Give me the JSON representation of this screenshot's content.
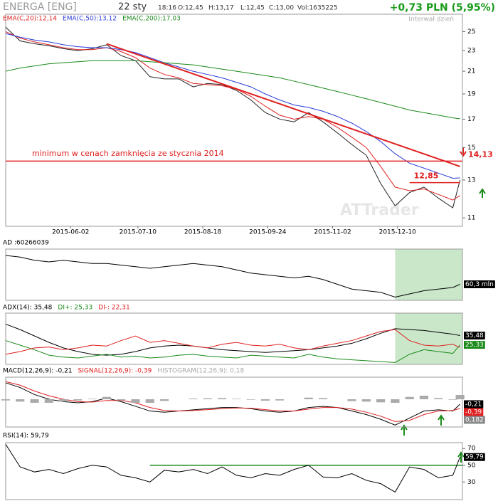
{
  "header": {
    "title": "ENERGA [ENG]",
    "date": "22 sty",
    "time": "18:16",
    "open": "O:12,45",
    "high": "H:13,17",
    "low": "L:12,45",
    "close": "C:13,00",
    "volume": "Vol:1635225",
    "change": "+0,73 PLN (5,95%)",
    "interval": "Interwał dzień",
    "watermark": "ATTrader"
  },
  "chart_data": [
    {
      "type": "line",
      "log_scale": true,
      "ylim": [
        10.6,
        27
      ],
      "yticks": [
        11,
        13,
        15,
        17,
        19,
        21,
        23,
        25
      ],
      "xlim": [
        0,
        190
      ],
      "xticks": [
        {
          "value": 27,
          "label": "2015-06-02"
        },
        {
          "value": 55,
          "label": "2015-07-10"
        },
        {
          "value": 82,
          "label": "2015-08-18"
        },
        {
          "value": 109,
          "label": "2015-09-24"
        },
        {
          "value": 136,
          "label": "2015-11-02"
        },
        {
          "value": 163,
          "label": "2015-12-10"
        }
      ],
      "x": [
        0,
        6,
        12,
        18,
        24,
        30,
        36,
        42,
        48,
        54,
        60,
        66,
        72,
        78,
        84,
        90,
        96,
        102,
        108,
        114,
        120,
        126,
        132,
        138,
        144,
        150,
        156,
        162,
        168,
        174,
        180,
        186,
        189
      ],
      "series": [
        {
          "color": "#222222",
          "values": [
            25.5,
            24.0,
            23.7,
            23.5,
            23.2,
            23.0,
            23.2,
            23.6,
            22.5,
            22.0,
            20.5,
            20.3,
            20.3,
            19.6,
            19.9,
            19.8,
            19.3,
            18.5,
            17.5,
            17.0,
            16.8,
            17.5,
            16.8,
            16.0,
            15.2,
            14.5,
            12.8,
            11.6,
            12.3,
            12.6,
            12.0,
            11.5,
            13.0
          ]
        },
        {
          "name": "EMA(C,20):12,14",
          "color": "#e02020",
          "values": [
            25.0,
            24.3,
            23.9,
            23.6,
            23.3,
            23.1,
            23.1,
            23.3,
            22.9,
            22.3,
            21.3,
            20.7,
            20.4,
            19.9,
            19.8,
            19.7,
            19.4,
            18.8,
            18.0,
            17.3,
            17.0,
            17.2,
            17.0,
            16.4,
            15.7,
            15.0,
            13.8,
            12.6,
            12.4,
            12.5,
            12.2,
            11.9,
            12.14
          ]
        },
        {
          "name": "EMA(C,50):13,12",
          "color": "#2a3cd8",
          "values": [
            24.8,
            24.4,
            24.1,
            23.9,
            23.6,
            23.4,
            23.3,
            23.3,
            23.1,
            22.8,
            22.3,
            21.8,
            21.4,
            21.0,
            20.7,
            20.4,
            20.0,
            19.6,
            19.0,
            18.5,
            18.1,
            17.9,
            17.6,
            17.2,
            16.7,
            16.1,
            15.4,
            14.6,
            14.0,
            13.7,
            13.4,
            13.1,
            13.12
          ]
        },
        {
          "name": "EMA(C,200):17,03",
          "color": "#1a8a1a",
          "values": [
            21.0,
            21.3,
            21.5,
            21.7,
            21.8,
            21.9,
            22.0,
            22.0,
            22.0,
            22.0,
            21.9,
            21.8,
            21.7,
            21.6,
            21.4,
            21.2,
            21.0,
            20.8,
            20.6,
            20.4,
            20.1,
            19.8,
            19.5,
            19.2,
            18.9,
            18.6,
            18.3,
            18.0,
            17.7,
            17.5,
            17.3,
            17.1,
            17.03
          ]
        }
      ],
      "trend_line": {
        "x": [
          42,
          189
        ],
        "values": [
          23.7,
          13.8
        ],
        "color": "#e02020"
      },
      "levels": [
        {
          "value": 14.13,
          "label": "14,13",
          "color": "#e02020"
        },
        {
          "value": 12.85,
          "label": "12,85",
          "from": 168,
          "to": 189,
          "color": "#e02020"
        }
      ],
      "annotation": "minimum w cenach zamknięcia ze stycznia 2014"
    },
    {
      "type": "line",
      "title": "AD :60266039",
      "ylim": [
        59.3,
        62.5
      ],
      "highlight": [
        162,
        190
      ],
      "series": [
        {
          "color": "#000000",
          "end_label": "60,3 mln",
          "values": [
            62.1,
            62.0,
            61.8,
            61.7,
            61.8,
            61.7,
            61.6,
            61.6,
            61.5,
            61.4,
            61.3,
            61.4,
            61.5,
            61.6,
            61.5,
            61.4,
            61.2,
            61.0,
            60.9,
            60.8,
            60.7,
            60.8,
            60.6,
            60.3,
            60.0,
            59.9,
            59.8,
            59.5,
            59.7,
            59.9,
            60.0,
            60.1,
            60.3
          ]
        }
      ]
    },
    {
      "type": "line",
      "ylim": [
        4,
        60
      ],
      "highlight": [
        162,
        190
      ],
      "series": [
        {
          "name": "ADX(14): 35,48",
          "color": "#000000",
          "end_label": "35,48",
          "values": [
            48,
            42,
            35,
            28,
            22,
            18,
            15,
            14,
            15,
            18,
            22,
            24,
            25,
            24,
            22,
            20,
            19,
            18,
            17,
            18,
            19,
            20,
            22,
            24,
            27,
            32,
            38,
            43,
            42,
            41,
            39,
            37,
            35.48
          ]
        },
        {
          "name": "DI+: 25,33",
          "color": "#1a8a1a",
          "end_label": "25,33",
          "values": [
            30,
            25,
            20,
            14,
            12,
            11,
            13,
            15,
            12,
            13,
            11,
            12,
            14,
            15,
            13,
            12,
            11,
            14,
            13,
            12,
            11,
            15,
            12,
            10,
            9,
            8,
            7,
            6,
            15,
            20,
            18,
            16,
            25.33
          ]
        },
        {
          "name": "DI-: 22,31",
          "color": "#e02020",
          "values": [
            15,
            18,
            22,
            23,
            20,
            22,
            25,
            24,
            30,
            35,
            28,
            30,
            27,
            24,
            22,
            26,
            28,
            25,
            24,
            26,
            22,
            20,
            24,
            27,
            30,
            35,
            40,
            42,
            30,
            25,
            24,
            26,
            22.31
          ]
        }
      ]
    },
    {
      "type": "line",
      "ylim": [
        -1.18,
        0.94
      ],
      "series": [
        {
          "name": "MACD(12,26,9): -0,21",
          "color": "#000000",
          "end_label": "-0,21",
          "values": [
            0.7,
            0.5,
            0.2,
            0,
            -0.1,
            -0.15,
            -0.1,
            0.05,
            -0.1,
            -0.3,
            -0.5,
            -0.55,
            -0.5,
            -0.45,
            -0.4,
            -0.35,
            -0.35,
            -0.4,
            -0.5,
            -0.55,
            -0.5,
            -0.35,
            -0.3,
            -0.35,
            -0.5,
            -0.65,
            -0.85,
            -1.1,
            -0.8,
            -0.5,
            -0.45,
            -0.5,
            -0.21
          ]
        },
        {
          "name": "SIGNAL(12,26,9): -0,39",
          "color": "#e02020",
          "end_label": "-0,39",
          "values": [
            0.75,
            0.6,
            0.35,
            0.15,
            0,
            -0.1,
            -0.12,
            -0.05,
            -0.05,
            -0.15,
            -0.35,
            -0.48,
            -0.5,
            -0.48,
            -0.44,
            -0.4,
            -0.37,
            -0.38,
            -0.44,
            -0.5,
            -0.5,
            -0.42,
            -0.35,
            -0.35,
            -0.42,
            -0.55,
            -0.72,
            -0.95,
            -0.9,
            -0.65,
            -0.5,
            -0.48,
            -0.392
          ]
        },
        {
          "name": "HISTOGRAM(12,26,9): 0,18",
          "color": "#aaaaaa",
          "bars": true,
          "end_label": "0,182",
          "values": [
            -0.05,
            -0.1,
            -0.15,
            -0.15,
            -0.1,
            -0.05,
            0.02,
            0.1,
            -0.05,
            -0.15,
            -0.15,
            -0.07,
            0,
            0.03,
            0.04,
            0.05,
            0.02,
            -0.02,
            -0.06,
            -0.05,
            0,
            0.07,
            0.05,
            0,
            -0.08,
            -0.1,
            -0.13,
            -0.15,
            0.1,
            0.15,
            0.05,
            -0.02,
            0.182
          ]
        }
      ]
    },
    {
      "type": "line",
      "ylim": [
        9,
        77
      ],
      "yticks": [
        30,
        50,
        70
      ],
      "series": [
        {
          "name": "RSI(14): 59,79",
          "color": "#000000",
          "end_label": "59,79",
          "values": [
            75,
            48,
            42,
            45,
            40,
            46,
            50,
            48,
            38,
            35,
            30,
            44,
            42,
            45,
            40,
            48,
            38,
            35,
            40,
            38,
            45,
            50,
            36,
            35,
            40,
            32,
            28,
            18,
            48,
            45,
            35,
            38,
            59.79
          ]
        }
      ],
      "level": {
        "value": 50,
        "from": 60,
        "color": "#1a8a1a"
      }
    }
  ]
}
